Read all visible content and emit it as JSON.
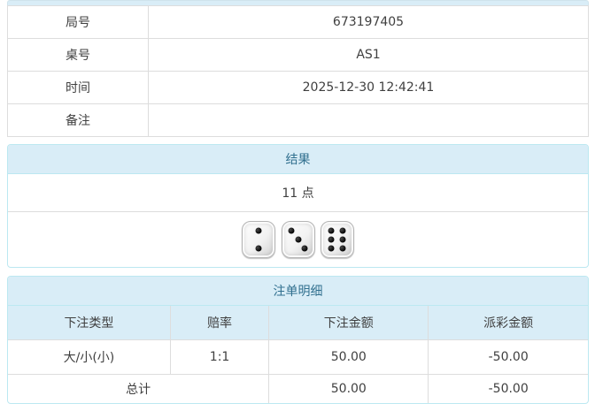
{
  "colors": {
    "panel_header_bg": "#d9edf7",
    "panel_header_text": "#31708f",
    "panel_border": "#bce8f1",
    "table_border": "#dddddd",
    "negative_amount": "#ff0000",
    "body_text": "#404040"
  },
  "info": {
    "rows": [
      {
        "label": "局号",
        "value": "673197405"
      },
      {
        "label": "桌号",
        "value": "AS1"
      },
      {
        "label": "时间",
        "value": "2025-12-30 12:42:41"
      },
      {
        "label": "备注",
        "value": ""
      }
    ]
  },
  "result": {
    "title": "结果",
    "points": "11 点",
    "dice": [
      2,
      3,
      6
    ]
  },
  "bets": {
    "title": "注单明细",
    "columns": [
      "下注类型",
      "赔率",
      "下注金额",
      "派彩金额"
    ],
    "rows": [
      {
        "type": "大/小(小)",
        "odds": "1:1",
        "amount": "50.00",
        "payout": "-50.00"
      }
    ],
    "total": {
      "label": "总计",
      "amount": "50.00",
      "payout": "-50.00"
    }
  }
}
